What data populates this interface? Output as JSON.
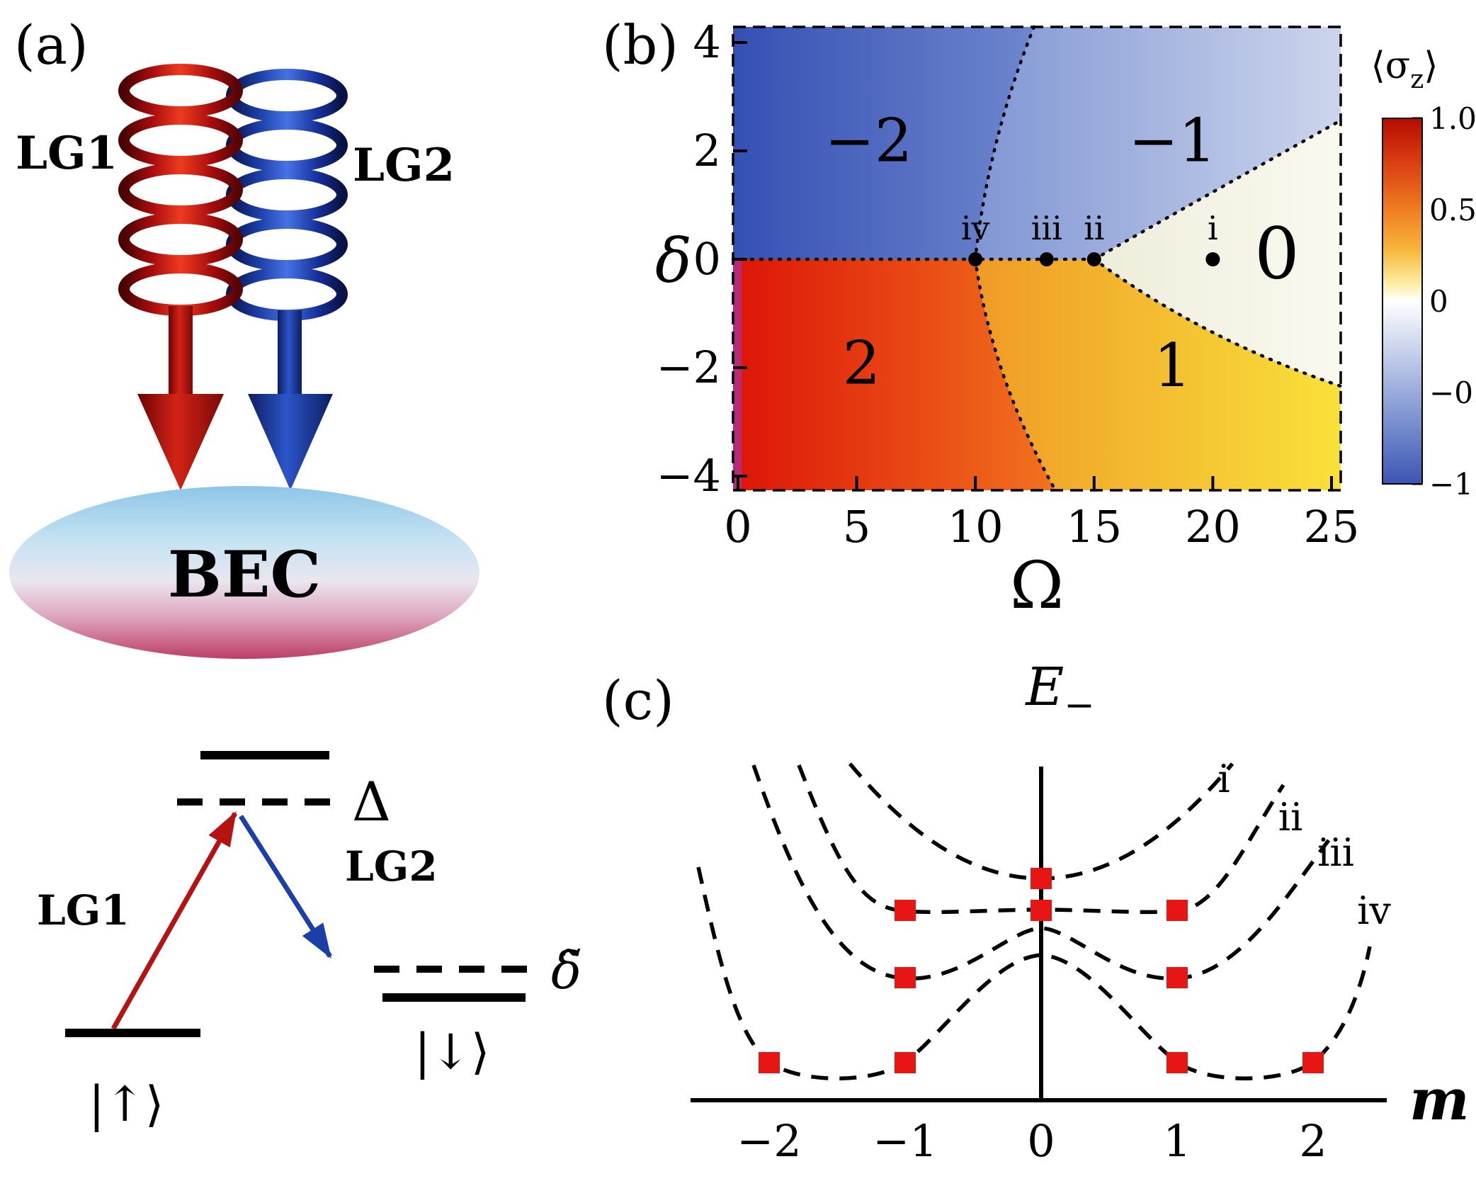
{
  "figure": {
    "panel_a_label": "(a)",
    "panel_b_label": "(b)",
    "panel_c_label": "(c)"
  },
  "apparatus": {
    "lg1_label": "LG1",
    "lg2_label": "LG2",
    "bec_label": "BEC",
    "lg1_color": "#cc1111",
    "lg2_color": "#1b3fa6"
  },
  "level_diagram": {
    "excited_detuning_label": "Δ",
    "two_photon_detuning_label": "δ̃",
    "lg1_label": "LG1",
    "lg2_label": "LG2",
    "spin_up_label": "|↑⟩",
    "spin_down_label": "|↓⟩"
  },
  "chart_data": [
    {
      "type": "heatmap",
      "xlabel": "Ω",
      "ylabel": "δ",
      "xlim": [
        0,
        25
      ],
      "ylim": [
        -4,
        4
      ],
      "grid": false,
      "x_ticks": [
        {
          "label": "0",
          "value": 0
        },
        {
          "label": "5",
          "value": 5
        },
        {
          "label": "10",
          "value": 10
        },
        {
          "label": "15",
          "value": 15
        },
        {
          "label": "20",
          "value": 20
        },
        {
          "label": "25",
          "value": 25
        }
      ],
      "y_ticks": [
        {
          "label": "4",
          "value": 4
        },
        {
          "label": "2",
          "value": 2
        },
        {
          "label": "0",
          "value": 0
        },
        {
          "label": "−2",
          "value": -2
        },
        {
          "label": "−4",
          "value": -4
        }
      ],
      "regions": [
        {
          "label": "−2",
          "omega": 5.5,
          "delta": 2.2,
          "emphasis": false,
          "color": "#3550b4"
        },
        {
          "label": "−1",
          "omega": 18.3,
          "delta": 2.2,
          "emphasis": false,
          "color": "#8096d4"
        },
        {
          "label": "0",
          "omega": 22.7,
          "delta": 0.2,
          "emphasis": true,
          "color": "#f3f1e0"
        },
        {
          "label": "2",
          "omega": 5.2,
          "delta": -1.9,
          "emphasis": false,
          "color": "#dd1408"
        },
        {
          "label": "1",
          "omega": 18.3,
          "delta": -1.95,
          "emphasis": false,
          "color": "#f6c930"
        }
      ],
      "marked_points": [
        {
          "label": "iv",
          "omega": 10,
          "delta": 0
        },
        {
          "label": "iii",
          "omega": 13,
          "delta": 0
        },
        {
          "label": "ii",
          "omega": 15,
          "delta": 0
        },
        {
          "label": "i",
          "omega": 20,
          "delta": 0
        }
      ],
      "colorbar": {
        "title_parts": [
          "⟨σ",
          "z",
          "⟩"
        ],
        "ticks": [
          {
            "label": "1.0",
            "value": 1
          },
          {
            "label": "0.5",
            "value": 0.5
          },
          {
            "label": "0",
            "value": 0
          },
          {
            "label": "−0.5",
            "value": -0.5
          },
          {
            "label": "−1.0",
            "value": -1
          }
        ],
        "top_color": "#b50b00",
        "mid_color": "#ffffff",
        "bottom_color": "#3d55b2"
      }
    },
    {
      "type": "line",
      "title_parts": [
        "E",
        "−"
      ],
      "xlabel": "m",
      "x_ticks": [
        {
          "label": "−2",
          "value": -2
        },
        {
          "label": "−1",
          "value": -1
        },
        {
          "label": "0",
          "value": 0
        },
        {
          "label": "1",
          "value": 1
        },
        {
          "label": "2",
          "value": 2
        }
      ],
      "curves": [
        {
          "label": "i",
          "minima_m": [
            0
          ],
          "description": "single well, minimum at m=0"
        },
        {
          "label": "ii",
          "minima_m": [
            -1,
            0,
            1
          ],
          "description": "degenerate minima at m=−1,0,1"
        },
        {
          "label": "iii",
          "minima_m": [
            -1,
            1
          ],
          "description": "double well, minima at m=±1"
        },
        {
          "label": "iv",
          "minima_m": [
            -2,
            -1,
            1,
            2
          ],
          "description": "degenerate minima at m=±1,±2"
        }
      ],
      "marker_color": "#e81515",
      "marker_shape": "square"
    }
  ]
}
